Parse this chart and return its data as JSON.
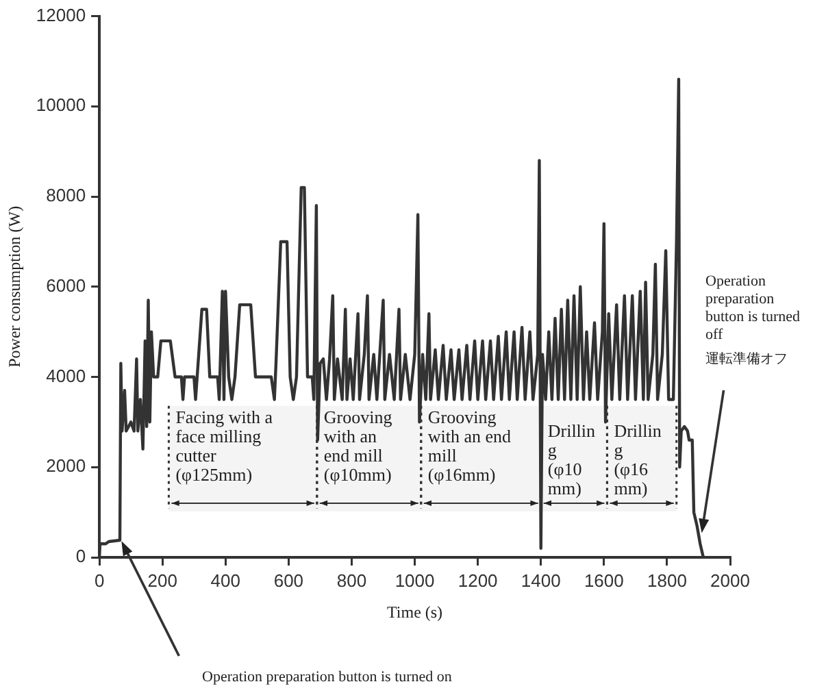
{
  "chart_data": {
    "type": "line",
    "xlabel": "Time (s)",
    "ylabel": "Power consumption (W)",
    "xlim": [
      0,
      2000
    ],
    "xticks": [
      0,
      200,
      400,
      600,
      800,
      1000,
      1200,
      1400,
      1600,
      1800,
      2000
    ],
    "ylim": [
      0,
      12000
    ],
    "yticks": [
      0,
      2000,
      4000,
      6000,
      8000,
      10000,
      12000
    ],
    "grid": false,
    "legend": false,
    "marker": "none",
    "line_style": "solid",
    "series": [
      {
        "color": "#333333",
        "x": [
          0,
          2,
          20,
          30,
          65,
          68,
          72,
          80,
          85,
          100,
          110,
          118,
          122,
          130,
          138,
          145,
          150,
          155,
          160,
          165,
          172,
          185,
          195,
          225,
          240,
          260,
          265,
          270,
          300,
          305,
          310,
          325,
          340,
          350,
          375,
          380,
          390,
          395,
          400,
          410,
          420,
          430,
          445,
          480,
          495,
          545,
          555,
          560,
          575,
          595,
          605,
          615,
          625,
          640,
          650,
          660,
          675,
          680,
          688,
          692,
          700,
          710,
          720,
          730,
          740,
          745,
          755,
          770,
          780,
          785,
          795,
          805,
          820,
          825,
          840,
          850,
          855,
          870,
          880,
          900,
          905,
          920,
          935,
          950,
          955,
          970,
          985,
          1000,
          1010,
          1015,
          1025,
          1035,
          1045,
          1050,
          1065,
          1075,
          1090,
          1100,
          1115,
          1125,
          1140,
          1150,
          1165,
          1175,
          1190,
          1200,
          1215,
          1225,
          1240,
          1250,
          1265,
          1275,
          1290,
          1300,
          1315,
          1325,
          1340,
          1350,
          1365,
          1375,
          1390,
          1395,
          1400,
          1405,
          1415,
          1425,
          1435,
          1445,
          1455,
          1465,
          1475,
          1485,
          1495,
          1505,
          1515,
          1525,
          1535,
          1545,
          1555,
          1570,
          1580,
          1595,
          1600,
          1605,
          1615,
          1625,
          1640,
          1650,
          1665,
          1675,
          1690,
          1700,
          1715,
          1725,
          1732,
          1740,
          1755,
          1763,
          1770,
          1785,
          1796,
          1805,
          1820,
          1830,
          1837,
          1840,
          1845,
          1855,
          1865,
          1870,
          1880,
          1885,
          1895,
          1905,
          1915,
          1920
        ],
        "values": [
          0,
          300,
          300,
          350,
          380,
          4300,
          2800,
          3700,
          2800,
          3000,
          2800,
          4400,
          2800,
          3500,
          2400,
          4800,
          2900,
          5700,
          3000,
          5000,
          4000,
          4000,
          4800,
          4800,
          4000,
          4000,
          3500,
          4000,
          4000,
          3500,
          4000,
          5500,
          5500,
          4000,
          4000,
          3500,
          5900,
          3500,
          5900,
          4000,
          3500,
          4000,
          5600,
          5600,
          4000,
          4000,
          3500,
          4300,
          7000,
          7000,
          4000,
          3500,
          4000,
          8200,
          8200,
          4000,
          4000,
          3500,
          7800,
          2600,
          4300,
          4400,
          3500,
          4400,
          5800,
          3500,
          4400,
          3500,
          5500,
          3500,
          4400,
          3500,
          5400,
          3500,
          4500,
          5800,
          3500,
          4500,
          3500,
          5700,
          3500,
          4500,
          3500,
          5500,
          3500,
          4500,
          3500,
          4500,
          7600,
          3000,
          4500,
          3500,
          5400,
          3500,
          4600,
          3500,
          4700,
          3500,
          4600,
          3500,
          4600,
          3500,
          4700,
          3500,
          4800,
          3500,
          4800,
          3500,
          4800,
          3500,
          4900,
          3500,
          5000,
          3500,
          5000,
          3500,
          5100,
          3500,
          5000,
          3500,
          4500,
          8800,
          200,
          4500,
          3500,
          5000,
          3500,
          5300,
          3500,
          5500,
          3500,
          5700,
          3500,
          5800,
          3500,
          6000,
          3500,
          5000,
          3500,
          5200,
          3500,
          5000,
          7400,
          3000,
          5400,
          3500,
          5600,
          3500,
          5800,
          3500,
          5800,
          3500,
          5900,
          3500,
          6100,
          3500,
          4500,
          6500,
          3500,
          4500,
          6800,
          3500,
          3500,
          7000,
          10600,
          2000,
          2800,
          2900,
          2800,
          2600,
          2600,
          1000,
          700,
          300,
          0,
          0
        ]
      }
    ],
    "bands": [
      {
        "axis": "x",
        "from": 220,
        "to": 690,
        "color": "#f4f4f4",
        "label": "Facing with a\nface milling\ncutter\n(φ125mm)"
      },
      {
        "axis": "x",
        "from": 690,
        "to": 1020,
        "color": "#f4f4f4",
        "label": "Grooving\nwith an\nend mill\n(φ10mm)"
      },
      {
        "axis": "x",
        "from": 1020,
        "to": 1400,
        "color": "#f4f4f4",
        "label": "Grooving\nwith an end\nmill\n(φ16mm)"
      },
      {
        "axis": "x",
        "from": 1400,
        "to": 1610,
        "color": "#f4f4f4",
        "label": "Drillin\ng\n(φ10\nmm)"
      },
      {
        "axis": "x",
        "from": 1610,
        "to": 1830,
        "color": "#f4f4f4",
        "label": "Drillin\ng\n(φ16\nmm)"
      }
    ],
    "annotations": [
      "Operation preparation button is turned on",
      "Operation\npreparation\nbutton is turned\noff",
      "運転準備オフ"
    ]
  }
}
